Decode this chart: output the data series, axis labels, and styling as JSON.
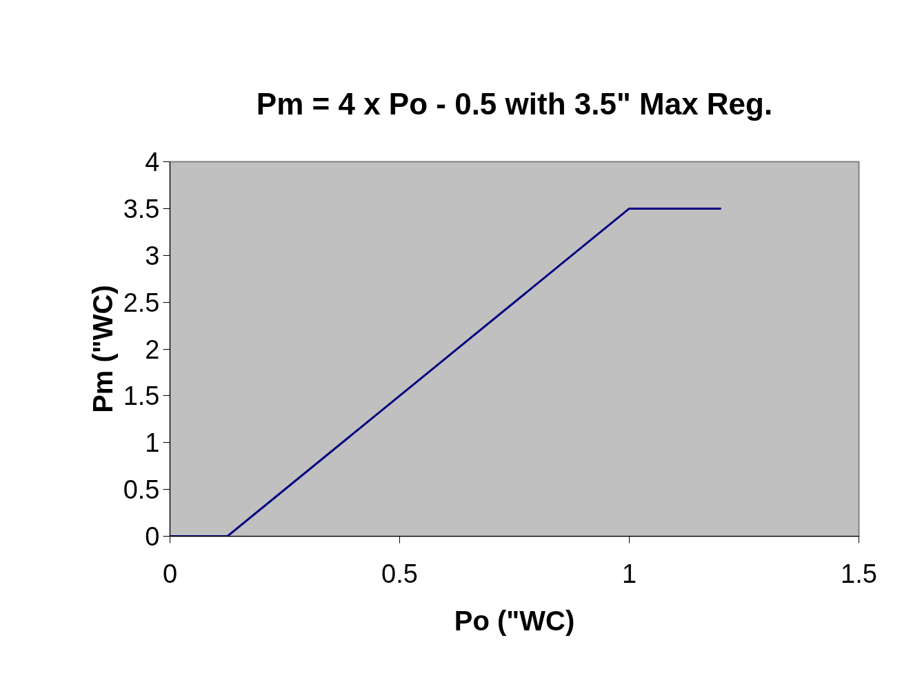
{
  "chart_data": {
    "type": "line",
    "title": "Pm = 4 x Po - 0.5 with 3.5\" Max Reg.",
    "xlabel": "Po (\"WC)",
    "ylabel": "Pm (\"WC)",
    "x": [
      0,
      0.125,
      0.2,
      0.4,
      0.6,
      0.9,
      1.0,
      1.2
    ],
    "series": [
      {
        "color": "#000080",
        "values": [
          0,
          0,
          0.3,
          1.1,
          1.9,
          3.1,
          3.5,
          3.5
        ]
      }
    ],
    "xlim": [
      0,
      1.5
    ],
    "xticks": [
      0,
      0.5,
      1,
      1.5
    ],
    "ylim": [
      0,
      4
    ],
    "yticks": [
      0,
      0.5,
      1,
      1.5,
      2,
      2.5,
      3,
      3.5,
      4
    ],
    "grid": false,
    "marker": "none",
    "line_style": "solid"
  }
}
